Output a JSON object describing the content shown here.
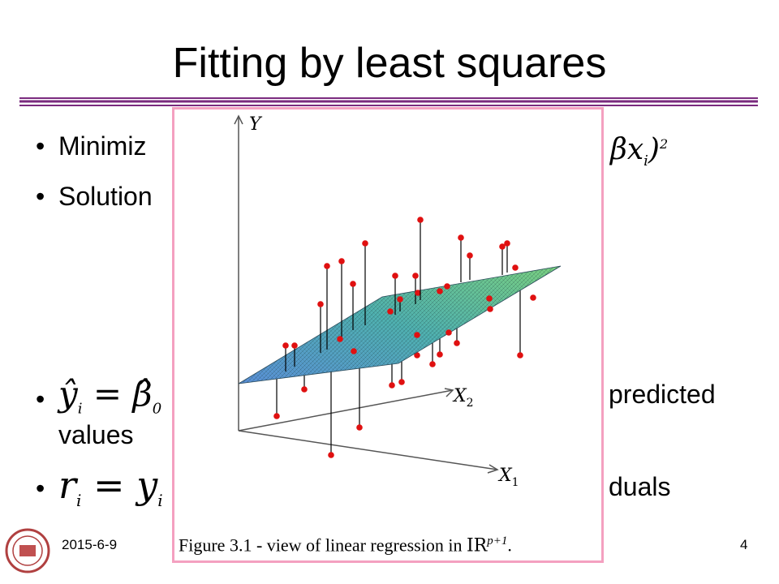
{
  "slide": {
    "title": "Fitting by least squares",
    "date": "2015-6-9",
    "page_number": "4"
  },
  "bullets": [
    {
      "text": "Minimiz",
      "math_right": "βx",
      "math_sub": "i",
      "math_close": ")",
      "math_sup": "2"
    },
    {
      "text": "Solution"
    },
    {
      "math": "ŷ",
      "math_sub": "i",
      "math_rest": "= β̂",
      "math_rest_sub": "0",
      "text_right": "predicted",
      "text_cont": "values"
    },
    {
      "math": "r",
      "math_sub": "i",
      "math_rest": "= y",
      "math_rest_sub": "i",
      "text_right": "duals"
    }
  ],
  "figure": {
    "caption_prefix": "Figure 3.1 - view of linear regression in ",
    "caption_math": "IR",
    "caption_sup": "p+1",
    "caption_end": ".",
    "axis_y": "Y",
    "axis_x1": "X",
    "axis_x1_sub": "1",
    "axis_x2": "X",
    "axis_x2_sub": "2"
  }
}
